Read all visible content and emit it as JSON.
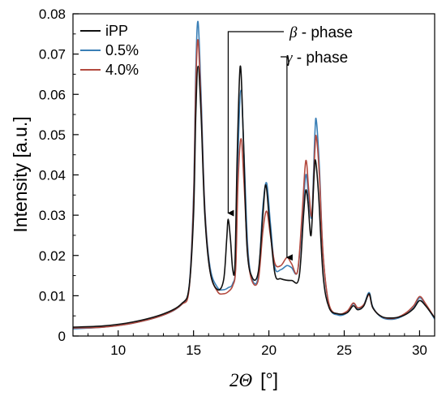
{
  "chart_data": {
    "type": "line",
    "xlabel_symbol": "2Θ",
    "xlabel_unit": "[°]",
    "ylabel": "Intensity [a.u.]",
    "xlim": [
      7,
      31
    ],
    "ylim": [
      0,
      0.08
    ],
    "xticks": [
      10,
      15,
      20,
      25,
      30
    ],
    "xtick_labels": [
      "10",
      "15",
      "20",
      "25",
      "30"
    ],
    "yticks": [
      0,
      0.01,
      0.02,
      0.03,
      0.04,
      0.05,
      0.06,
      0.07,
      0.08
    ],
    "ytick_labels": [
      "0",
      "0.01",
      "0.02",
      "0.03",
      "0.04",
      "0.05",
      "0.06",
      "0.07",
      "0.08"
    ],
    "grid": false,
    "legend_position": "top-left",
    "series": [
      {
        "name": "iPP",
        "color": "#111111",
        "points": [
          [
            7,
            0.0022
          ],
          [
            9,
            0.0025
          ],
          [
            11,
            0.0035
          ],
          [
            13,
            0.0055
          ],
          [
            14.2,
            0.008
          ],
          [
            14.7,
            0.012
          ],
          [
            15.0,
            0.03
          ],
          [
            15.15,
            0.055
          ],
          [
            15.3,
            0.067
          ],
          [
            15.5,
            0.055
          ],
          [
            15.75,
            0.03
          ],
          [
            16.1,
            0.016
          ],
          [
            16.6,
            0.0115
          ],
          [
            17.0,
            0.014
          ],
          [
            17.2,
            0.024
          ],
          [
            17.3,
            0.029
          ],
          [
            17.45,
            0.024
          ],
          [
            17.6,
            0.0165
          ],
          [
            17.75,
            0.018
          ],
          [
            17.9,
            0.045
          ],
          [
            18.1,
            0.067
          ],
          [
            18.3,
            0.05
          ],
          [
            18.55,
            0.022
          ],
          [
            18.9,
            0.0145
          ],
          [
            19.3,
            0.016
          ],
          [
            19.6,
            0.03
          ],
          [
            19.8,
            0.0375
          ],
          [
            20.05,
            0.028
          ],
          [
            20.4,
            0.0155
          ],
          [
            20.8,
            0.0142
          ],
          [
            21.5,
            0.0138
          ],
          [
            22.0,
            0.0145
          ],
          [
            22.3,
            0.03
          ],
          [
            22.45,
            0.0362
          ],
          [
            22.6,
            0.033
          ],
          [
            22.8,
            0.025
          ],
          [
            23.0,
            0.04
          ],
          [
            23.1,
            0.0435
          ],
          [
            23.3,
            0.035
          ],
          [
            23.6,
            0.015
          ],
          [
            24.0,
            0.007
          ],
          [
            24.6,
            0.0055
          ],
          [
            25.2,
            0.0058
          ],
          [
            25.6,
            0.0075
          ],
          [
            25.9,
            0.0065
          ],
          [
            26.3,
            0.0075
          ],
          [
            26.65,
            0.0105
          ],
          [
            26.9,
            0.007
          ],
          [
            27.5,
            0.0048
          ],
          [
            28.3,
            0.0045
          ],
          [
            29.0,
            0.0052
          ],
          [
            29.6,
            0.0068
          ],
          [
            30.0,
            0.0088
          ],
          [
            30.4,
            0.0075
          ],
          [
            31,
            0.0045
          ]
        ]
      },
      {
        "name": "0.5%",
        "color": "#3a7fb6",
        "points": [
          [
            7,
            0.0018
          ],
          [
            9,
            0.0022
          ],
          [
            11,
            0.0032
          ],
          [
            13,
            0.0052
          ],
          [
            14.2,
            0.0078
          ],
          [
            14.7,
            0.012
          ],
          [
            15.0,
            0.035
          ],
          [
            15.15,
            0.066
          ],
          [
            15.3,
            0.078
          ],
          [
            15.5,
            0.06
          ],
          [
            15.75,
            0.032
          ],
          [
            16.1,
            0.017
          ],
          [
            16.6,
            0.012
          ],
          [
            17.0,
            0.0115
          ],
          [
            17.3,
            0.012
          ],
          [
            17.6,
            0.013
          ],
          [
            17.8,
            0.018
          ],
          [
            17.95,
            0.045
          ],
          [
            18.15,
            0.061
          ],
          [
            18.35,
            0.045
          ],
          [
            18.6,
            0.022
          ],
          [
            18.9,
            0.014
          ],
          [
            19.3,
            0.015
          ],
          [
            19.6,
            0.032
          ],
          [
            19.85,
            0.038
          ],
          [
            20.1,
            0.028
          ],
          [
            20.4,
            0.017
          ],
          [
            20.8,
            0.0165
          ],
          [
            21.2,
            0.0175
          ],
          [
            21.5,
            0.017
          ],
          [
            21.9,
            0.016
          ],
          [
            22.2,
            0.028
          ],
          [
            22.45,
            0.04
          ],
          [
            22.65,
            0.034
          ],
          [
            22.85,
            0.03
          ],
          [
            23.05,
            0.05
          ],
          [
            23.15,
            0.0535
          ],
          [
            23.35,
            0.042
          ],
          [
            23.6,
            0.02
          ],
          [
            24.0,
            0.0075
          ],
          [
            24.6,
            0.0052
          ],
          [
            25.2,
            0.0058
          ],
          [
            25.6,
            0.008
          ],
          [
            25.9,
            0.0068
          ],
          [
            26.3,
            0.0078
          ],
          [
            26.65,
            0.0108
          ],
          [
            26.9,
            0.0072
          ],
          [
            27.5,
            0.0046
          ],
          [
            28.3,
            0.0042
          ],
          [
            29.0,
            0.0052
          ],
          [
            29.6,
            0.007
          ],
          [
            30.0,
            0.0095
          ],
          [
            30.4,
            0.0078
          ],
          [
            31,
            0.0042
          ]
        ]
      },
      {
        "name": "4.0%",
        "color": "#b34a3f",
        "points": [
          [
            7,
            0.002
          ],
          [
            9,
            0.0022
          ],
          [
            11,
            0.0032
          ],
          [
            13,
            0.0052
          ],
          [
            14.2,
            0.0078
          ],
          [
            14.7,
            0.0115
          ],
          [
            15.0,
            0.033
          ],
          [
            15.15,
            0.062
          ],
          [
            15.3,
            0.0735
          ],
          [
            15.5,
            0.057
          ],
          [
            15.75,
            0.031
          ],
          [
            16.1,
            0.016
          ],
          [
            16.6,
            0.011
          ],
          [
            17.0,
            0.0105
          ],
          [
            17.3,
            0.011
          ],
          [
            17.6,
            0.0125
          ],
          [
            17.8,
            0.017
          ],
          [
            17.95,
            0.038
          ],
          [
            18.15,
            0.049
          ],
          [
            18.35,
            0.038
          ],
          [
            18.6,
            0.02
          ],
          [
            18.9,
            0.0135
          ],
          [
            19.3,
            0.014
          ],
          [
            19.6,
            0.026
          ],
          [
            19.85,
            0.031
          ],
          [
            20.1,
            0.025
          ],
          [
            20.4,
            0.018
          ],
          [
            20.8,
            0.0175
          ],
          [
            21.2,
            0.0195
          ],
          [
            21.5,
            0.018
          ],
          [
            21.9,
            0.016
          ],
          [
            22.2,
            0.03
          ],
          [
            22.45,
            0.0435
          ],
          [
            22.65,
            0.036
          ],
          [
            22.85,
            0.03
          ],
          [
            23.05,
            0.046
          ],
          [
            23.15,
            0.0495
          ],
          [
            23.35,
            0.04
          ],
          [
            23.6,
            0.02
          ],
          [
            24.0,
            0.0078
          ],
          [
            24.6,
            0.0055
          ],
          [
            25.2,
            0.0062
          ],
          [
            25.6,
            0.0082
          ],
          [
            25.9,
            0.007
          ],
          [
            26.3,
            0.0078
          ],
          [
            26.65,
            0.0102
          ],
          [
            26.9,
            0.007
          ],
          [
            27.5,
            0.0048
          ],
          [
            28.3,
            0.0044
          ],
          [
            29.0,
            0.0055
          ],
          [
            29.6,
            0.0075
          ],
          [
            30.0,
            0.0098
          ],
          [
            30.4,
            0.008
          ],
          [
            31,
            0.0045
          ]
        ]
      }
    ],
    "annotations": [
      {
        "text_symbol": "β",
        "text_suffix": " - phase",
        "target": [
          17.3,
          0.0295
        ]
      },
      {
        "text_symbol": "γ",
        "text_suffix": " - phase",
        "target": [
          21.2,
          0.0185
        ]
      }
    ]
  }
}
